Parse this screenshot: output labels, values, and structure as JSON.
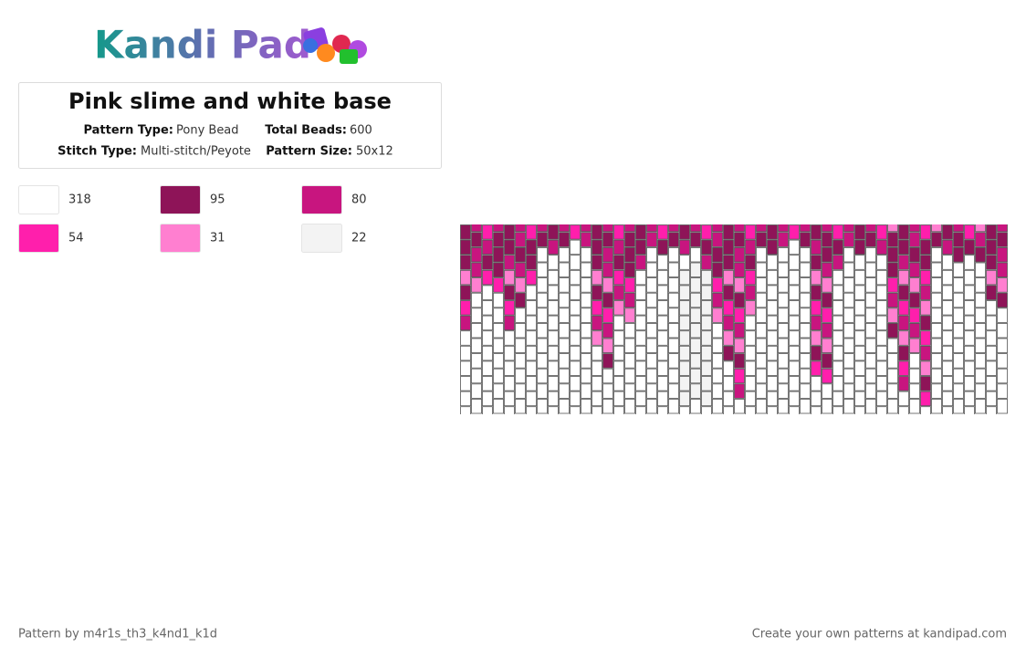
{
  "header": {
    "logo": "Kandi Pad",
    "title": "Pink slime and white base"
  },
  "info": {
    "pattern_type_label": "Pattern Type:",
    "pattern_type": "Pony Bead",
    "total_beads_label": "Total Beads:",
    "total_beads": 600,
    "stitch_type_label": "Stitch Type:",
    "stitch_type": "Multi-stitch/Peyote",
    "pattern_size_label": "Pattern Size:",
    "pattern_size": "50x12"
  },
  "legend": [
    {
      "color": "#ffffff",
      "count": 318
    },
    {
      "color": "#8e1458",
      "count": 95
    },
    {
      "color": "#c8157f",
      "count": 80
    },
    {
      "color": "#ff1fac",
      "count": 54
    },
    {
      "color": "#ff7fd0",
      "count": 31
    },
    {
      "color": "#f3f3f3",
      "count": 22
    }
  ],
  "footer": {
    "author": "Pattern by m4r1s_th3_k4nd1_k1d",
    "credit": "Create your own patterns at kandipad.com"
  }
}
